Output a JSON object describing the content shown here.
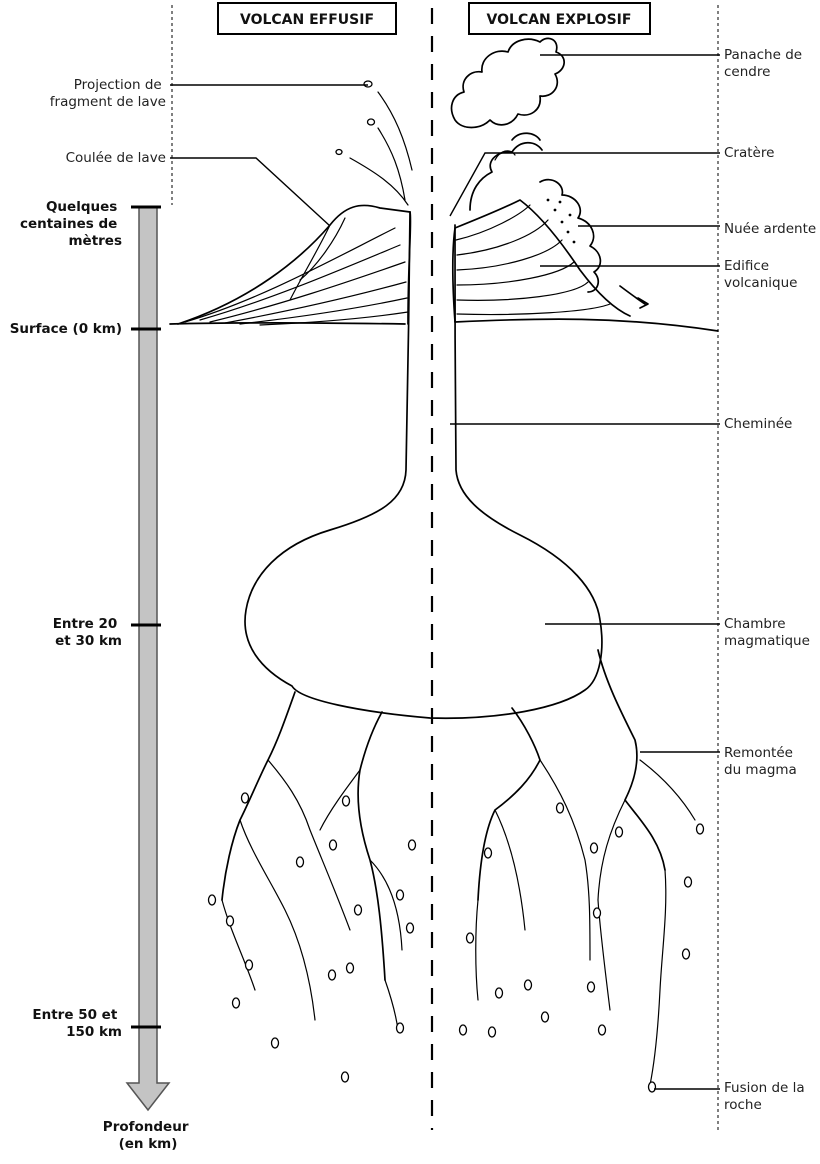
{
  "headers": {
    "effusive": "VOLCAN EFFUSIF",
    "explosive": "VOLCAN EXPLOSIF"
  },
  "labels": {
    "projection": [
      "Projection de",
      "fragment de lave"
    ],
    "lava_flow": [
      "Coulée de lave"
    ],
    "ash_plume": [
      "Panache de",
      "cendre"
    ],
    "crater": [
      "Cratère"
    ],
    "pyroclastic_flow": [
      "Nuée ardente"
    ],
    "volcanic_edifice": [
      "Edifice",
      "volcanique"
    ],
    "chimney": [
      "Cheminée"
    ],
    "magma_chamber": [
      "Chambre",
      "magmatique"
    ],
    "magma_rise": [
      "Remontée",
      "du magma"
    ],
    "rock_melting": [
      "Fusion de la",
      "roche"
    ]
  },
  "depth_scale": {
    "ticks": [
      [
        "Quelques",
        "centaines de",
        "mètres"
      ],
      [
        "Surface (0 km)"
      ],
      [
        "Entre 20",
        "et 30 km"
      ],
      [
        "Entre 50 et",
        "150 km"
      ]
    ],
    "axis_label": [
      "Profondeur",
      "(en km)"
    ]
  },
  "colors": {
    "scale_bar": "#c4c4c4",
    "ink": "#000000"
  }
}
